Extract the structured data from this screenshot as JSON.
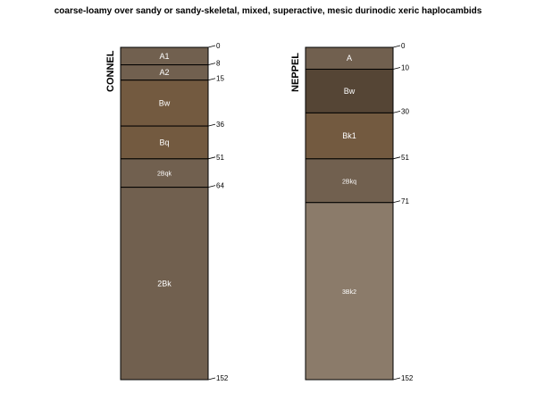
{
  "title": "coarse-loamy over sandy or sandy-skeletal, mixed, superactive, mesic durinodic xeric haplocambids",
  "max_depth": 152,
  "profiles": [
    {
      "name": "CONNEL",
      "horizons": [
        {
          "name": "A1",
          "top": 0,
          "bottom": 8,
          "color": "#71604f"
        },
        {
          "name": "A2",
          "top": 8,
          "bottom": 15,
          "color": "#71604f"
        },
        {
          "name": "Bw",
          "top": 15,
          "bottom": 36,
          "color": "#735a40"
        },
        {
          "name": "Bq",
          "top": 36,
          "bottom": 51,
          "color": "#735a40"
        },
        {
          "name": "2Bqk",
          "top": 51,
          "bottom": 64,
          "color": "#71604f"
        },
        {
          "name": "2Bk",
          "top": 64,
          "bottom": 152,
          "color": "#71604f"
        }
      ],
      "depth_labels": [
        "0",
        "8",
        "15",
        "36",
        "51",
        "64",
        "152"
      ]
    },
    {
      "name": "NEPPEL",
      "horizons": [
        {
          "name": "A",
          "top": 0,
          "bottom": 10,
          "color": "#71604f"
        },
        {
          "name": "Bw",
          "top": 10,
          "bottom": 30,
          "color": "#554535"
        },
        {
          "name": "Bk1",
          "top": 30,
          "bottom": 51,
          "color": "#735a40"
        },
        {
          "name": "2Bkq",
          "top": 51,
          "bottom": 71,
          "color": "#71604f"
        },
        {
          "name": "3Bk2",
          "top": 71,
          "bottom": 152,
          "color": "#8b7b6a"
        }
      ],
      "depth_labels": [
        "0",
        "10",
        "30",
        "51",
        "71",
        "152"
      ]
    }
  ]
}
